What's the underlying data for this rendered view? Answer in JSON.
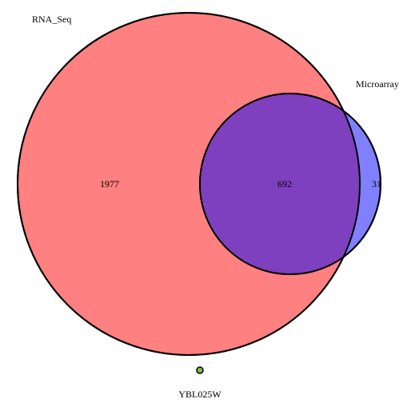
{
  "diagram": {
    "type": "venn",
    "sets": [
      {
        "id": "rna_seq",
        "label": "RNA_Seq",
        "color": "#ff8080"
      },
      {
        "id": "microarray",
        "label": "Microarray",
        "color": "#8080ff"
      }
    ],
    "overlap_color": "#7f40bf",
    "outline_color": "#000000",
    "regions": {
      "rna_seq_only": "1977",
      "both": "692",
      "microarray_only": "31"
    },
    "outlier": {
      "label": "YBL025W",
      "color": "#7fbf40"
    }
  }
}
